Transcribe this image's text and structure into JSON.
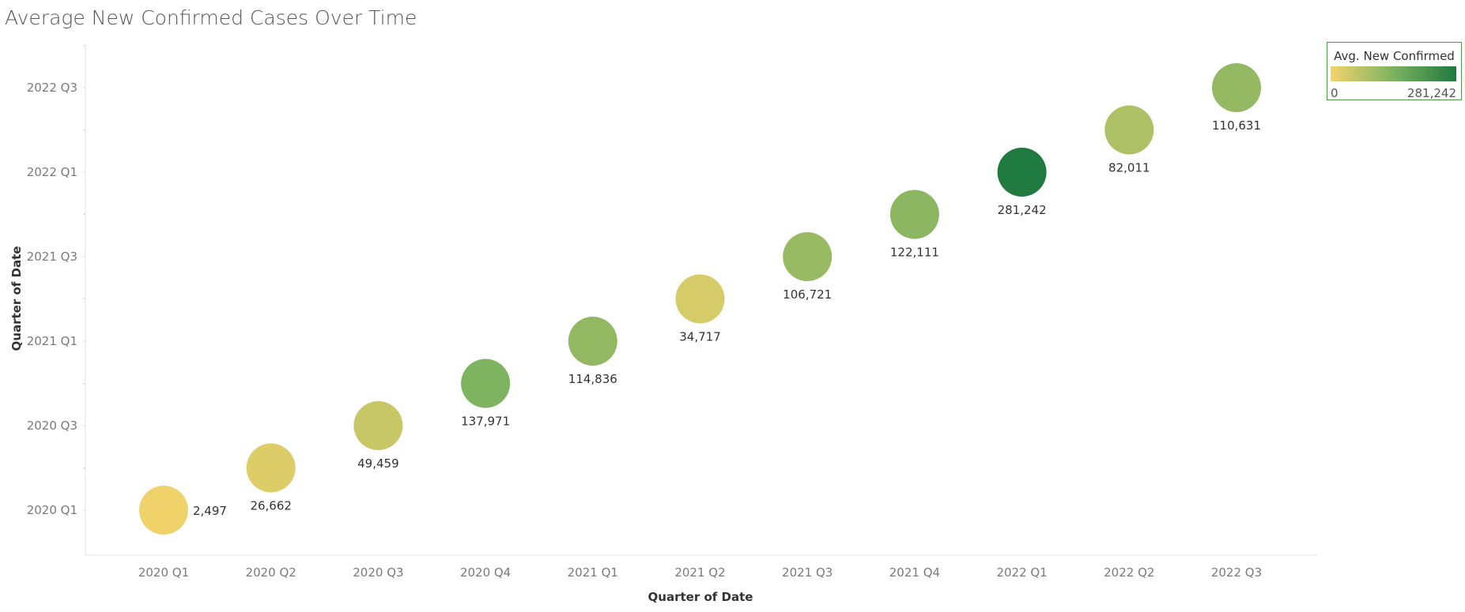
{
  "title": "Average New Confirmed Cases Over Time",
  "legend": {
    "title": "Avg. New Confirmed",
    "min_label": "0",
    "max_label": "281,242",
    "color_low": "#f2d36b",
    "color_mid": "#7cb260",
    "color_high": "#1f7a3f"
  },
  "chart_data": {
    "type": "scatter",
    "title": "Average New Confirmed Cases Over Time",
    "xlabel": "Quarter of Date",
    "ylabel": "Quarter of Date",
    "x_categories": [
      "2020 Q1",
      "2020 Q2",
      "2020 Q3",
      "2020 Q4",
      "2021 Q1",
      "2021 Q2",
      "2021 Q3",
      "2021 Q4",
      "2022 Q1",
      "2022 Q2",
      "2022 Q3"
    ],
    "y_ticks": [
      "2020 Q1",
      "2020 Q3",
      "2021 Q1",
      "2021 Q3",
      "2022 Q1",
      "2022 Q3"
    ],
    "color_range": [
      0,
      281242
    ],
    "points": [
      {
        "x": "2020 Q1",
        "y": "2020 Q1",
        "value": 2497,
        "label": "2,497"
      },
      {
        "x": "2020 Q2",
        "y": "2020 Q2",
        "value": 26662,
        "label": "26,662"
      },
      {
        "x": "2020 Q3",
        "y": "2020 Q3",
        "value": 49459,
        "label": "49,459"
      },
      {
        "x": "2020 Q4",
        "y": "2020 Q4",
        "value": 137971,
        "label": "137,971"
      },
      {
        "x": "2021 Q1",
        "y": "2021 Q1",
        "value": 114836,
        "label": "114,836"
      },
      {
        "x": "2021 Q2",
        "y": "2021 Q2",
        "value": 34717,
        "label": "34,717"
      },
      {
        "x": "2021 Q3",
        "y": "2021 Q3",
        "value": 106721,
        "label": "106,721"
      },
      {
        "x": "2021 Q4",
        "y": "2021 Q4",
        "value": 122111,
        "label": "122,111"
      },
      {
        "x": "2022 Q1",
        "y": "2022 Q1",
        "value": 281242,
        "label": "281,242"
      },
      {
        "x": "2022 Q2",
        "y": "2022 Q2",
        "value": 82011,
        "label": "82,011"
      },
      {
        "x": "2022 Q3",
        "y": "2022 Q3",
        "value": 110631,
        "label": "110,631"
      }
    ]
  }
}
